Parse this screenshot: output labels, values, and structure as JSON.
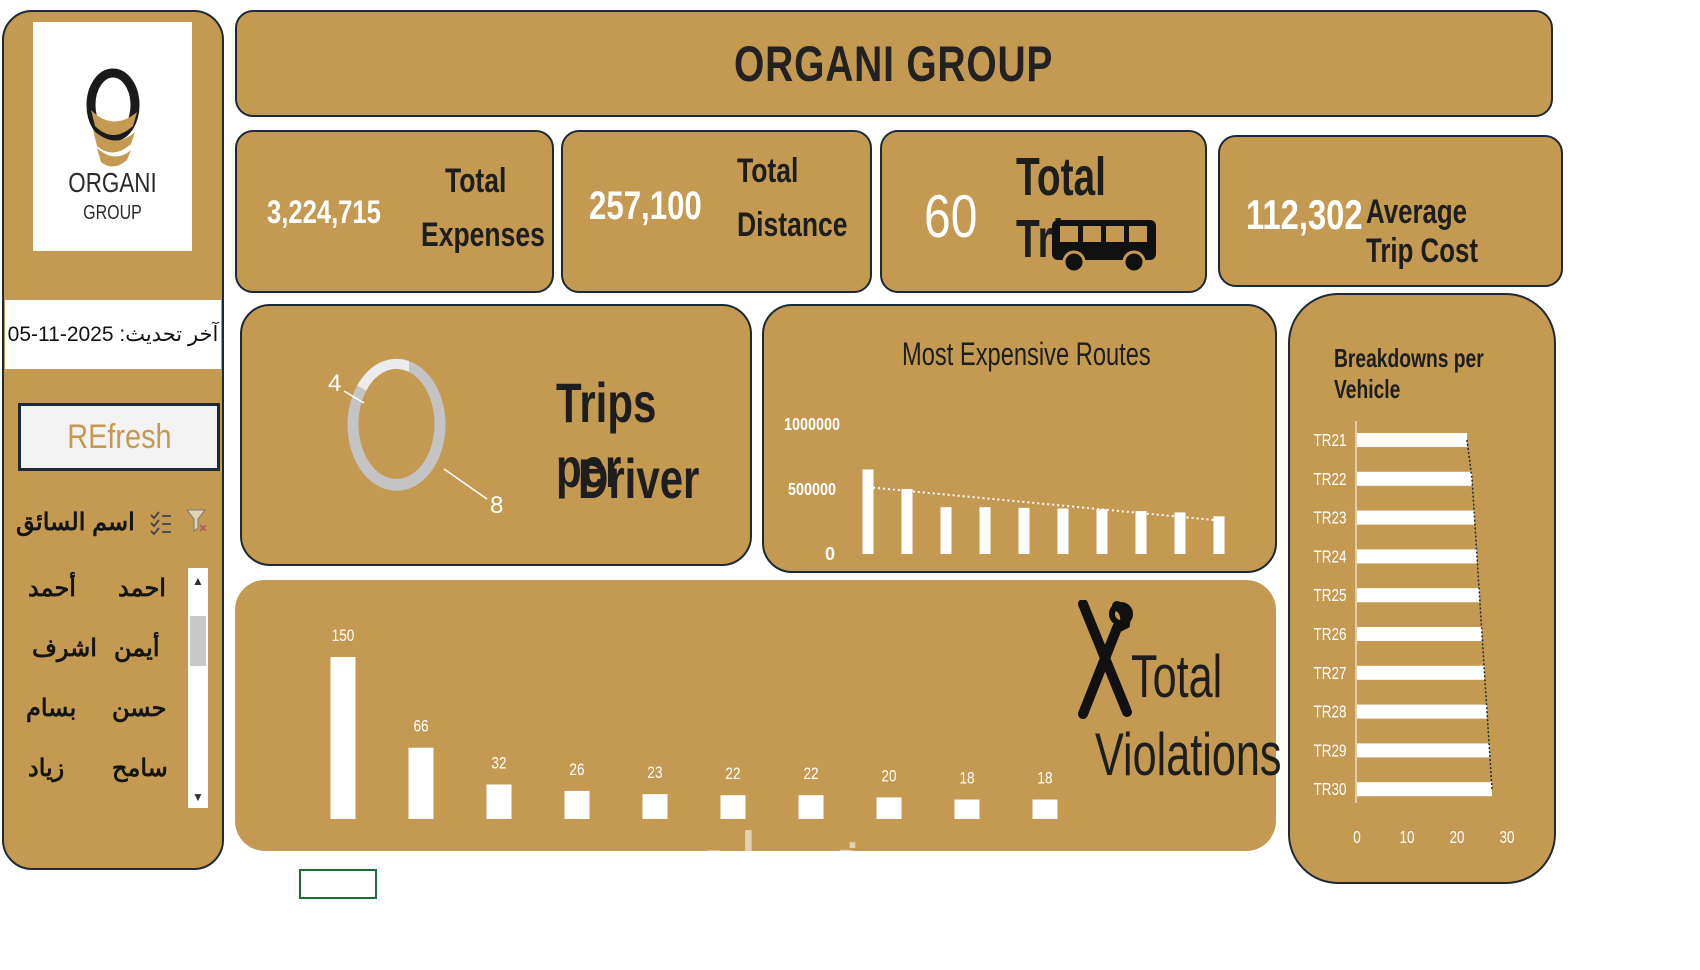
{
  "sidebar": {
    "logo": {
      "line1": "ORGANI",
      "line2": "GROUP"
    },
    "last_update": "آخر تحديث: 2025-11-05",
    "refresh_label": "REfresh",
    "slicer": {
      "title": "اسم السائق",
      "items": [
        "احمد",
        "أحمد",
        "أيمن",
        "اشرف",
        "حسن",
        "بسام",
        "سامح",
        "زياد"
      ]
    }
  },
  "header": {
    "title": "ORGANI GROUP"
  },
  "kpis": {
    "expenses": {
      "value": "3,224,715",
      "label1": "Total",
      "label2": "Expenses"
    },
    "distance": {
      "value": "257,100",
      "label1": "Total",
      "label2": "Distance"
    },
    "trips": {
      "value": "60",
      "label": "Total Trips",
      "icon": "bus-icon"
    },
    "avg_cost": {
      "value": "112,302",
      "label": "Average Trip Cost"
    }
  },
  "trips_per_driver": {
    "title1": "Trips per",
    "title2": "Driver",
    "chart_data": {
      "type": "pie",
      "values": [
        4,
        8
      ],
      "labels": [
        "4",
        "8"
      ]
    }
  },
  "expensive_routes": {
    "title": "Most Expensive Routes",
    "chart_data": {
      "type": "bar",
      "values": [
        650000,
        500000,
        360000,
        360000,
        355000,
        350000,
        345000,
        330000,
        320000,
        290000
      ],
      "ylim": [
        0,
        1000000
      ],
      "yticks": [
        "1000000",
        "500000",
        "0"
      ]
    }
  },
  "breakdowns": {
    "title": "Breakdowns per Vehicle",
    "chart_data": {
      "type": "bar",
      "categories": [
        "TR21",
        "TR22",
        "TR23",
        "TR24",
        "TR25",
        "TR26",
        "TR27",
        "TR28",
        "TR29",
        "TR30"
      ],
      "values": [
        22,
        23,
        23.5,
        24,
        24.5,
        25,
        25.5,
        26,
        26.5,
        27
      ],
      "xlim": [
        0,
        30
      ],
      "xticks": [
        "0",
        "10",
        "20",
        "30"
      ]
    }
  },
  "violations": {
    "title1": "Total",
    "title2": "Violations",
    "icon": "tools-icon",
    "chart_data": {
      "type": "bar",
      "values": [
        150,
        66,
        32,
        26,
        23,
        22,
        22,
        20,
        18,
        18
      ],
      "labels": [
        "150",
        "66",
        "32",
        "26",
        "23",
        "22",
        "22",
        "20",
        "18",
        "18"
      ]
    }
  },
  "watermark": "خمسات",
  "colors": {
    "panel": "#c49a53",
    "border": "#1c2a35",
    "bar": "#ffffff"
  }
}
